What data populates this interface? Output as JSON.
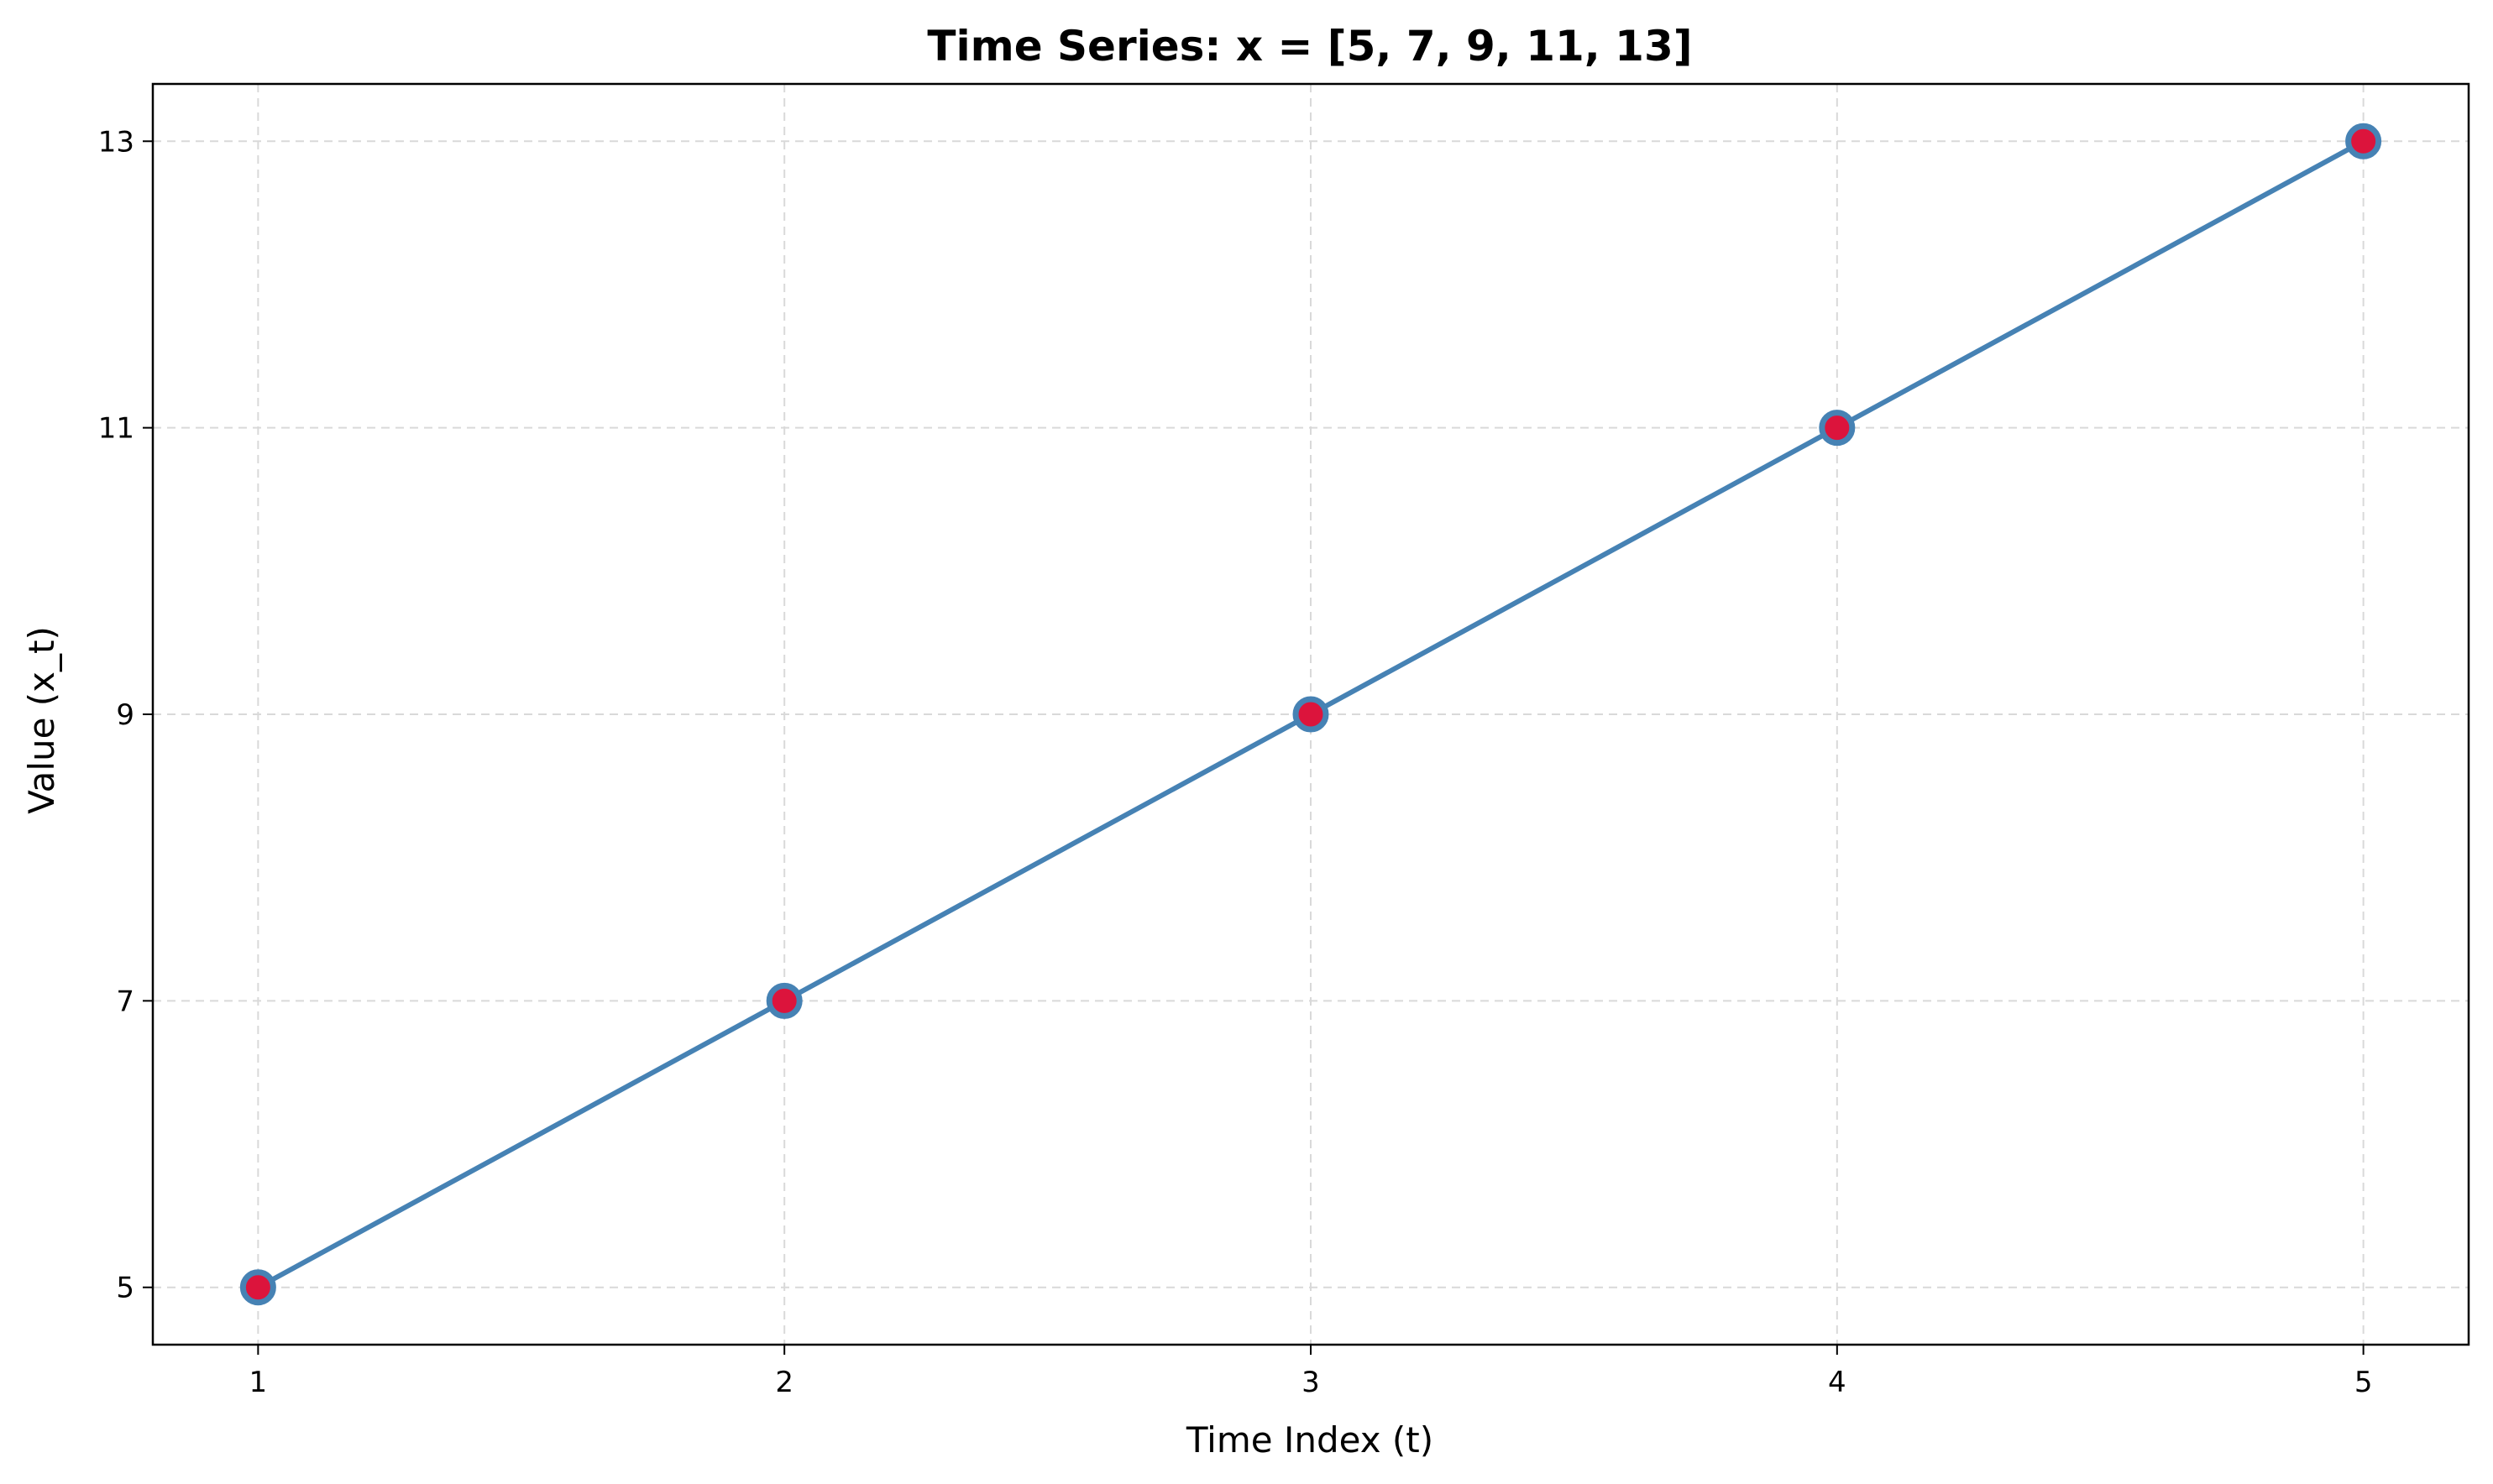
{
  "chart_data": {
    "type": "line",
    "title": "Time Series: x = [5, 7, 9, 11, 13]",
    "xlabel": "Time Index (t)",
    "ylabel": "Value (x_t)",
    "x": [
      1,
      2,
      3,
      4,
      5
    ],
    "series": [
      {
        "values": [
          5,
          7,
          9,
          11,
          13
        ],
        "color": "#4682b4",
        "marker_face_color": "#dc143c",
        "marker_edge_color": "#4682b4"
      }
    ],
    "xticks": [
      "1",
      "2",
      "3",
      "4",
      "5"
    ],
    "yticks": [
      "5",
      "7",
      "9",
      "11",
      "13"
    ],
    "xlim": [
      0.8,
      5.2
    ],
    "ylim": [
      4.6,
      13.4
    ],
    "grid": true,
    "grid_style": "dashed",
    "legend": false
  }
}
